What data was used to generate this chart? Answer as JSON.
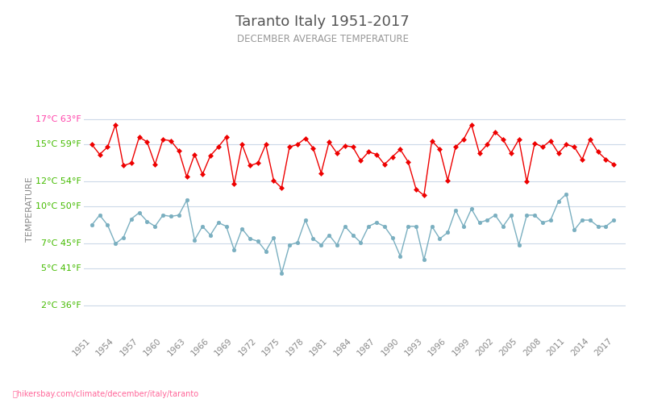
{
  "title": "Taranto Italy 1951-2017",
  "subtitle": "DECEMBER AVERAGE TEMPERATURE",
  "ylabel": "TEMPERATURE",
  "footer": "hikersbay.com/climate/december/italy/taranto",
  "years": [
    1951,
    1952,
    1953,
    1954,
    1955,
    1956,
    1957,
    1958,
    1959,
    1960,
    1961,
    1962,
    1963,
    1964,
    1965,
    1966,
    1967,
    1968,
    1969,
    1970,
    1971,
    1972,
    1973,
    1974,
    1975,
    1976,
    1977,
    1978,
    1979,
    1980,
    1981,
    1982,
    1983,
    1984,
    1985,
    1986,
    1987,
    1988,
    1989,
    1990,
    1991,
    1992,
    1993,
    1994,
    1995,
    1996,
    1997,
    1998,
    1999,
    2000,
    2001,
    2002,
    2003,
    2004,
    2005,
    2006,
    2007,
    2008,
    2009,
    2010,
    2011,
    2012,
    2013,
    2014,
    2015,
    2016,
    2017
  ],
  "day_temps": [
    15.0,
    14.2,
    14.8,
    16.6,
    13.3,
    13.5,
    15.6,
    15.2,
    13.4,
    15.4,
    15.3,
    14.5,
    12.4,
    14.2,
    12.6,
    14.1,
    14.8,
    15.6,
    11.8,
    15.0,
    13.3,
    13.5,
    15.0,
    12.1,
    11.5,
    14.8,
    15.0,
    15.5,
    14.7,
    12.7,
    15.2,
    14.3,
    14.9,
    14.8,
    13.7,
    14.4,
    14.2,
    13.4,
    14.0,
    14.6,
    13.6,
    11.4,
    10.9,
    15.3,
    14.6,
    12.1,
    14.8,
    15.4,
    16.6,
    14.3,
    15.0,
    16.0,
    15.4,
    14.3,
    15.4,
    12.0,
    15.1,
    14.8,
    15.3,
    14.3,
    15.0,
    14.8,
    13.8,
    15.4,
    14.4,
    13.8,
    13.4
  ],
  "night_temps": [
    8.5,
    9.3,
    8.5,
    7.0,
    7.5,
    9.0,
    9.5,
    8.8,
    8.4,
    9.3,
    9.2,
    9.3,
    10.5,
    7.3,
    8.4,
    7.7,
    8.7,
    8.4,
    6.5,
    8.2,
    7.4,
    7.2,
    6.4,
    7.5,
    4.6,
    6.9,
    7.1,
    8.9,
    7.4,
    6.9,
    7.7,
    6.9,
    8.4,
    7.7,
    7.1,
    8.4,
    8.7,
    8.4,
    7.5,
    6.0,
    8.4,
    8.4,
    5.7,
    8.4,
    7.4,
    7.9,
    9.7,
    8.4,
    9.8,
    8.7,
    8.9,
    9.3,
    8.4,
    9.3,
    6.9,
    9.3,
    9.3,
    8.7,
    8.9,
    10.4,
    11.0,
    8.1,
    8.9,
    8.9,
    8.4,
    8.4,
    8.9
  ],
  "day_color": "#ee0000",
  "night_color": "#7aafc0",
  "grid_color": "#ccd9e8",
  "title_color": "#555555",
  "subtitle_color": "#999999",
  "label_color_green": "#44bb00",
  "label_color_pink": "#ff44aa",
  "ylabel_color": "#888888",
  "bg_color": "#ffffff",
  "yticks_c": [
    2,
    5,
    7,
    10,
    12,
    15,
    17
  ],
  "yticks_f": [
    36,
    41,
    45,
    50,
    54,
    59,
    63
  ],
  "ylim": [
    0.0,
    19.5
  ],
  "xlim": [
    1950.0,
    2018.5
  ]
}
